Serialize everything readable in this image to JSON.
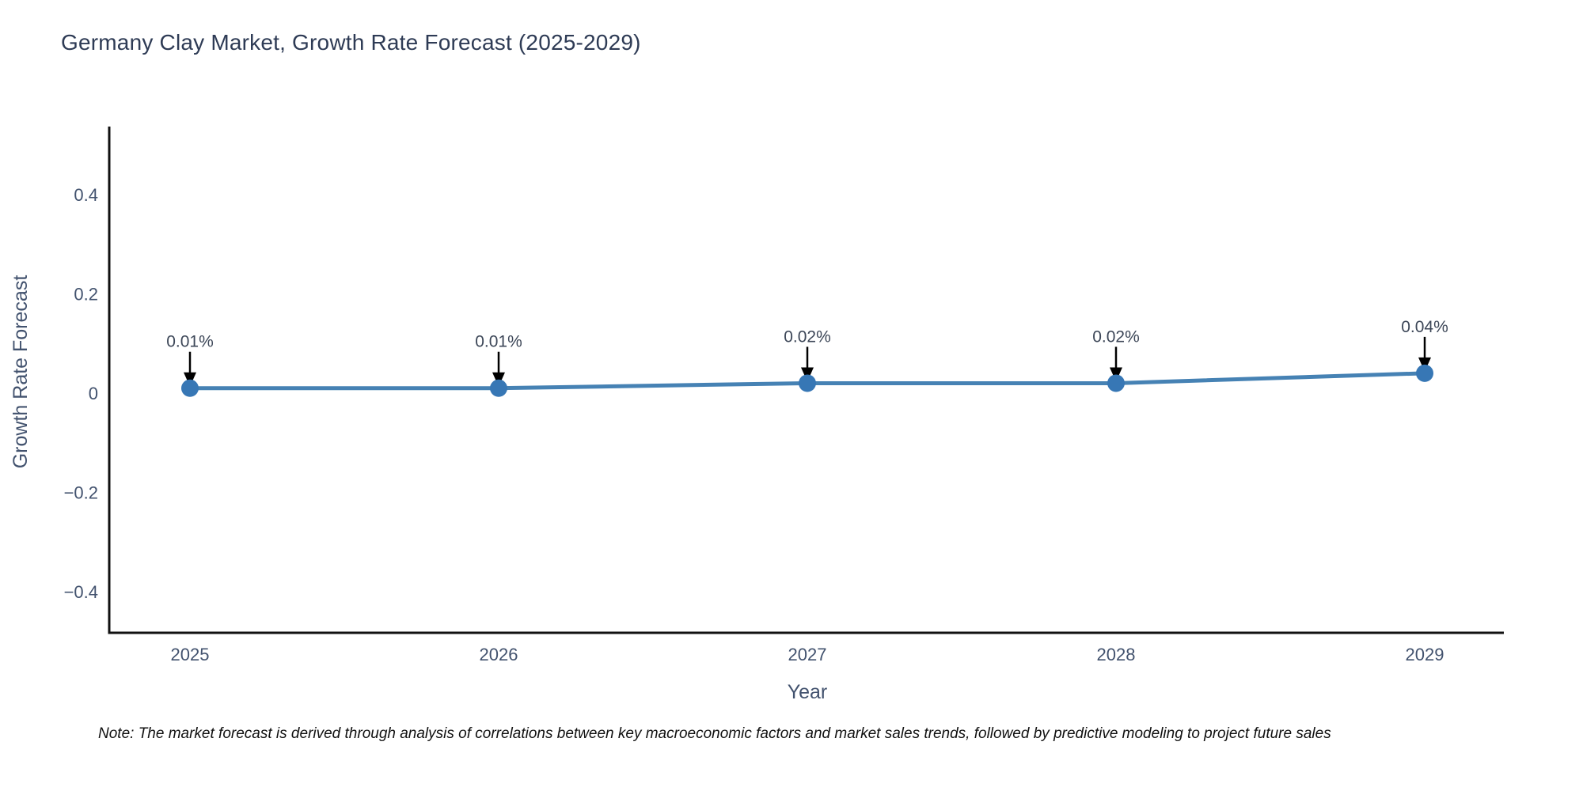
{
  "title": "Germany Clay Market, Growth Rate Forecast (2025-2029)",
  "note": "Note: The market forecast is derived through analysis of correlations between key macroeconomic factors and market sales trends, followed by predictive modeling to project future sales",
  "chart_data": {
    "type": "line",
    "title": "Germany Clay Market, Growth Rate Forecast (2025-2029)",
    "xlabel": "Year",
    "ylabel": "Growth Rate Forecast",
    "x": [
      2025,
      2026,
      2027,
      2028,
      2029
    ],
    "y": [
      0.01,
      0.01,
      0.02,
      0.02,
      0.04
    ],
    "point_labels": [
      "0.01%",
      "0.01%",
      "0.02%",
      "0.02%",
      "0.04%"
    ],
    "xtick_labels": [
      "2025",
      "2026",
      "2027",
      "2028",
      "2029"
    ],
    "yticks": [
      0.4,
      0.2,
      0,
      -0.2,
      -0.4
    ],
    "ytick_labels": [
      "0.4",
      "0.2",
      "0",
      "−0.2",
      "−0.4"
    ],
    "ylim": [
      -0.5,
      0.55
    ],
    "grid": false,
    "legend": "none",
    "colors": {
      "line": "#4682b4",
      "marker": "#3777b5",
      "arrow": "#000000",
      "axis": "#111111",
      "tick_text": "#42526e",
      "title_text": "#2e3b55",
      "note_text": "#111111"
    }
  }
}
